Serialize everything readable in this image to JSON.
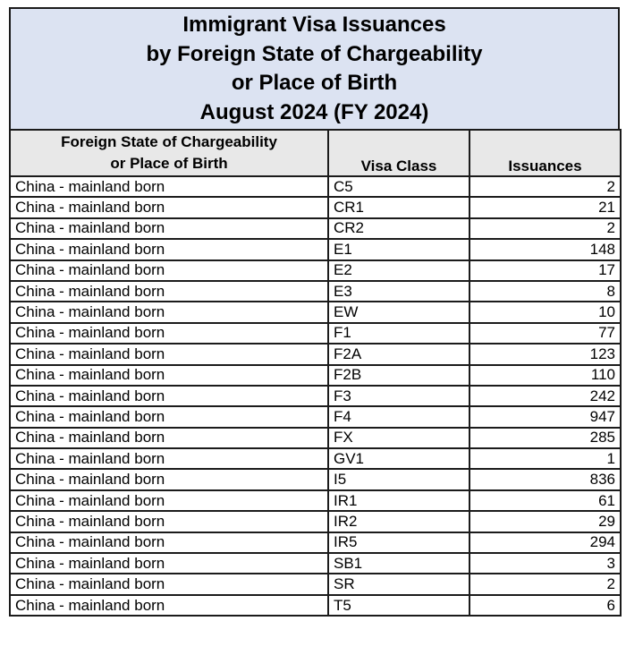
{
  "colors": {
    "title_bg": "#dce3f2",
    "header_bg": "#e8e8e8",
    "border": "#1b1b1b"
  },
  "title": {
    "lines": [
      "Immigrant Visa Issuances",
      "by Foreign State of Chargeability",
      "or Place of Birth",
      "August 2024 (FY 2024)"
    ]
  },
  "table": {
    "headers": {
      "col1_line1": "Foreign State of Chargeability",
      "col1_line2": "or Place of Birth",
      "col2": "Visa Class",
      "col3": "Issuances"
    },
    "rows": [
      {
        "place": "China - mainland born",
        "visa_class": "C5",
        "issuances": "2"
      },
      {
        "place": "China - mainland born",
        "visa_class": "CR1",
        "issuances": "21"
      },
      {
        "place": "China - mainland born",
        "visa_class": "CR2",
        "issuances": "2"
      },
      {
        "place": "China - mainland born",
        "visa_class": "E1",
        "issuances": "148"
      },
      {
        "place": "China - mainland born",
        "visa_class": "E2",
        "issuances": "17"
      },
      {
        "place": "China - mainland born",
        "visa_class": "E3",
        "issuances": "8"
      },
      {
        "place": "China - mainland born",
        "visa_class": "EW",
        "issuances": "10"
      },
      {
        "place": "China - mainland born",
        "visa_class": "F1",
        "issuances": "77"
      },
      {
        "place": "China - mainland born",
        "visa_class": "F2A",
        "issuances": "123"
      },
      {
        "place": "China - mainland born",
        "visa_class": "F2B",
        "issuances": "110"
      },
      {
        "place": "China - mainland born",
        "visa_class": "F3",
        "issuances": "242"
      },
      {
        "place": "China - mainland born",
        "visa_class": "F4",
        "issuances": "947"
      },
      {
        "place": "China - mainland born",
        "visa_class": "FX",
        "issuances": "285"
      },
      {
        "place": "China - mainland born",
        "visa_class": "GV1",
        "issuances": "1"
      },
      {
        "place": "China - mainland born",
        "visa_class": "I5",
        "issuances": "836"
      },
      {
        "place": "China - mainland born",
        "visa_class": "IR1",
        "issuances": "61"
      },
      {
        "place": "China - mainland born",
        "visa_class": "IR2",
        "issuances": "29"
      },
      {
        "place": "China - mainland born",
        "visa_class": "IR5",
        "issuances": "294"
      },
      {
        "place": "China - mainland born",
        "visa_class": "SB1",
        "issuances": "3"
      },
      {
        "place": "China - mainland born",
        "visa_class": "SR",
        "issuances": "2"
      },
      {
        "place": "China - mainland born",
        "visa_class": "T5",
        "issuances": "6"
      }
    ]
  }
}
